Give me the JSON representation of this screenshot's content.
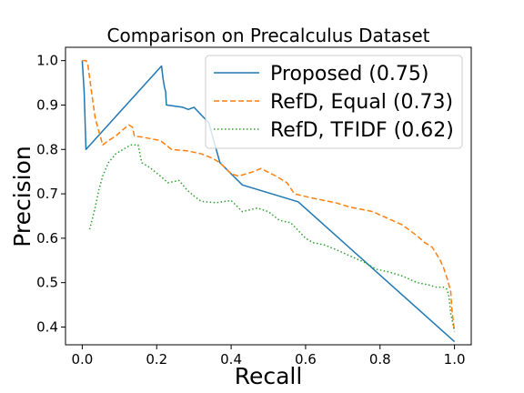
{
  "chart_data": {
    "type": "line",
    "title": "Comparison on Precalculus Dataset",
    "xlabel": "Recall",
    "ylabel": "Precision",
    "xlim": [
      -0.045,
      1.045
    ],
    "ylim": [
      0.36,
      1.03
    ],
    "xticks": [
      0.0,
      0.2,
      0.4,
      0.6,
      0.8,
      1.0
    ],
    "xtick_labels": [
      "0.0",
      "0.2",
      "0.4",
      "0.6",
      "0.8",
      "1.0"
    ],
    "yticks": [
      0.4,
      0.5,
      0.6,
      0.7,
      0.8,
      0.9,
      1.0
    ],
    "ytick_labels": [
      "0.4",
      "0.5",
      "0.6",
      "0.7",
      "0.8",
      "0.9",
      "1.0"
    ],
    "grid": false,
    "legend_position": "top-right",
    "series": [
      {
        "name": "Proposed (0.75)",
        "color": "#1f77b4",
        "style": "solid",
        "x": [
          0.0,
          0.005,
          0.01,
          0.213,
          0.217,
          0.219,
          0.221,
          0.224,
          0.226,
          0.27,
          0.285,
          0.3,
          0.34,
          0.36,
          0.37,
          0.43,
          0.58,
          1.0
        ],
        "y": [
          1.0,
          0.93,
          0.8,
          0.988,
          0.96,
          0.95,
          0.94,
          0.93,
          0.9,
          0.895,
          0.89,
          0.895,
          0.86,
          0.8,
          0.77,
          0.72,
          0.682,
          0.367
        ]
      },
      {
        "name": "RefD, Equal (0.73)",
        "color": "#ff7f0e",
        "style": "dashed",
        "x": [
          0.0,
          0.01,
          0.015,
          0.025,
          0.035,
          0.045,
          0.055,
          0.07,
          0.09,
          0.11,
          0.125,
          0.135,
          0.14,
          0.16,
          0.21,
          0.24,
          0.28,
          0.32,
          0.35,
          0.37,
          0.4,
          0.42,
          0.46,
          0.48,
          0.52,
          0.55,
          0.57,
          0.62,
          0.68,
          0.72,
          0.78,
          0.82,
          0.86,
          0.9,
          0.92,
          0.94,
          0.96,
          0.97,
          0.98,
          0.99,
          0.993,
          1.0
        ],
        "y": [
          1.0,
          1.0,
          0.99,
          0.93,
          0.87,
          0.84,
          0.81,
          0.82,
          0.83,
          0.845,
          0.855,
          0.85,
          0.83,
          0.828,
          0.82,
          0.8,
          0.797,
          0.79,
          0.78,
          0.77,
          0.745,
          0.74,
          0.75,
          0.757,
          0.74,
          0.725,
          0.7,
          0.69,
          0.68,
          0.67,
          0.66,
          0.645,
          0.63,
          0.605,
          0.59,
          0.58,
          0.553,
          0.535,
          0.51,
          0.48,
          0.44,
          0.39
        ]
      },
      {
        "name": "RefD, TFIDF (0.62)",
        "color": "#2ca02c",
        "style": "dotted",
        "x": [
          0.02,
          0.035,
          0.045,
          0.055,
          0.07,
          0.09,
          0.11,
          0.13,
          0.15,
          0.16,
          0.18,
          0.21,
          0.23,
          0.26,
          0.28,
          0.3,
          0.32,
          0.36,
          0.4,
          0.43,
          0.47,
          0.5,
          0.53,
          0.56,
          0.6,
          0.62,
          0.65,
          0.68,
          0.72,
          0.76,
          0.79,
          0.82,
          0.86,
          0.9,
          0.93,
          0.95,
          0.97,
          0.98,
          0.985,
          0.99,
          1.0
        ],
        "y": [
          0.62,
          0.67,
          0.71,
          0.74,
          0.77,
          0.79,
          0.8,
          0.81,
          0.81,
          0.77,
          0.76,
          0.74,
          0.725,
          0.73,
          0.71,
          0.695,
          0.683,
          0.68,
          0.685,
          0.66,
          0.668,
          0.66,
          0.64,
          0.635,
          0.6,
          0.59,
          0.585,
          0.575,
          0.56,
          0.545,
          0.53,
          0.525,
          0.515,
          0.5,
          0.495,
          0.49,
          0.49,
          0.485,
          0.47,
          0.43,
          0.39
        ]
      }
    ]
  }
}
